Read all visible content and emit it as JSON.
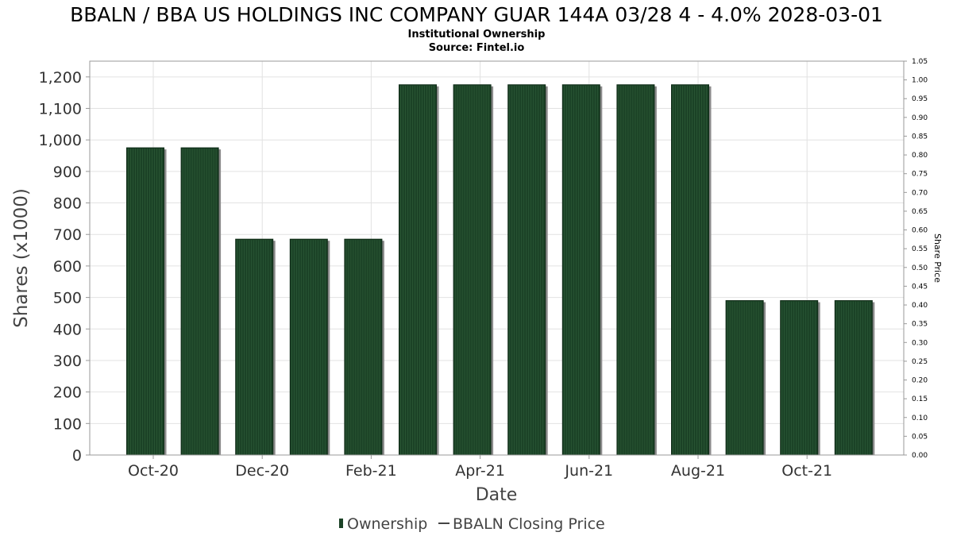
{
  "chart_data": {
    "type": "bar",
    "title": "BBALN / BBA US HOLDINGS INC COMPANY GUAR 144A 03/28 4 - 4.0% 2028-03-01",
    "subtitle_lines": [
      "Institutional Ownership",
      "Source: Fintel.io"
    ],
    "xlabel": "Date",
    "ylabel": "Shares (x1000)",
    "y2label": "Share Price",
    "ylim": [
      0,
      1250
    ],
    "y2lim": [
      0,
      1.05
    ],
    "yticks": [
      "0",
      "100",
      "200",
      "300",
      "400",
      "500",
      "600",
      "700",
      "800",
      "900",
      "1,000",
      "1,100",
      "1,200"
    ],
    "y2ticks": [
      "0.00",
      "0.05",
      "0.10",
      "0.15",
      "0.20",
      "0.25",
      "0.30",
      "0.35",
      "0.40",
      "0.45",
      "0.50",
      "0.55",
      "0.60",
      "0.65",
      "0.70",
      "0.75",
      "0.80",
      "0.85",
      "0.90",
      "0.95",
      "1.00",
      "1.05"
    ],
    "xticks": [
      "Oct-20",
      "Dec-20",
      "Feb-21",
      "Apr-21",
      "Jun-21",
      "Aug-21",
      "Oct-21"
    ],
    "grid": true,
    "legend_position": "bottom",
    "colors": {
      "bar": "#1b4226",
      "bar_edge": "#0e2a16",
      "bar_shadow": "#8a8a8a"
    },
    "series": [
      {
        "name": "Ownership",
        "values": [
          975,
          975,
          685,
          685,
          685,
          1175,
          1175,
          1175,
          1175,
          1175,
          1175,
          490,
          490,
          490
        ]
      },
      {
        "name": "BBALN Closing Price",
        "values": []
      }
    ]
  }
}
